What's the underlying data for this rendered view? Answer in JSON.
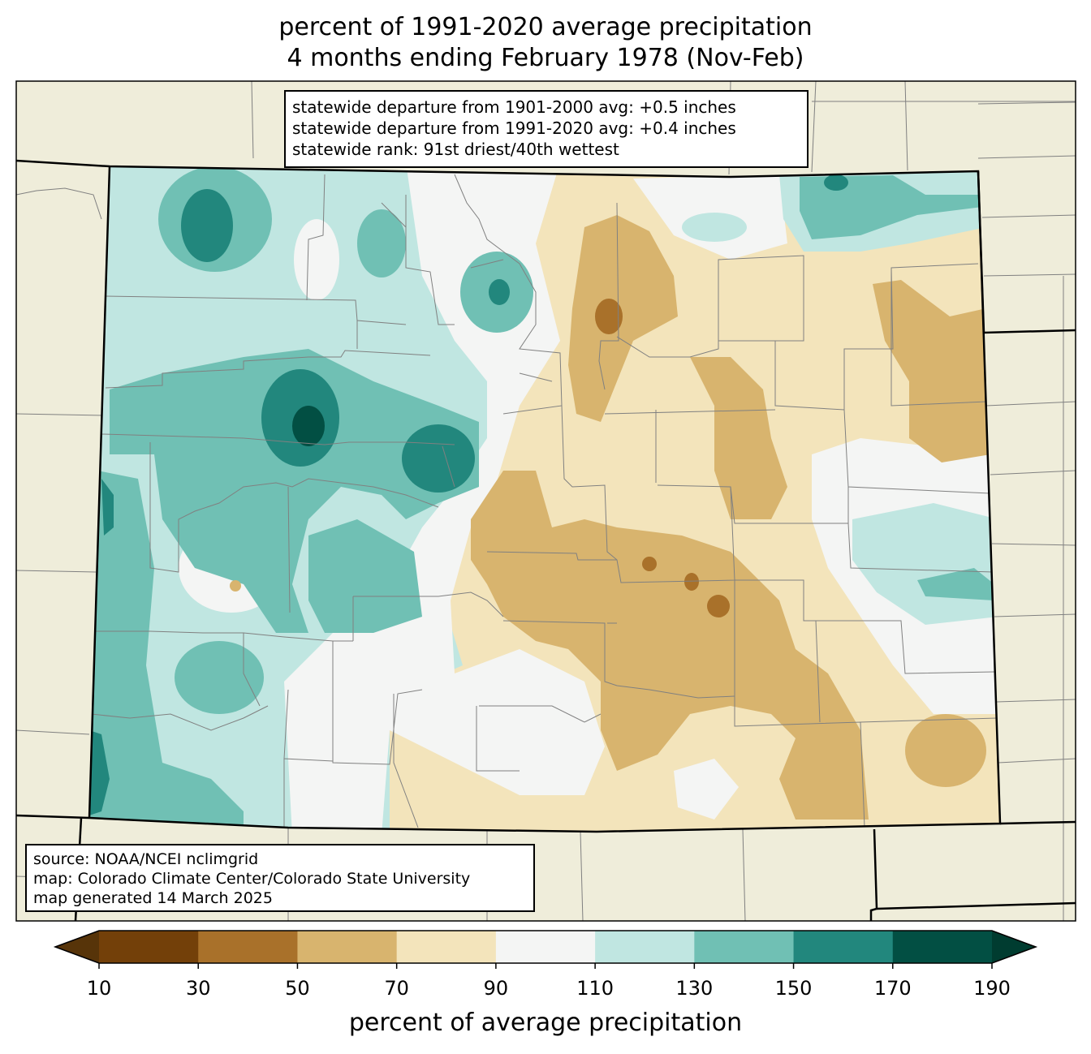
{
  "title": {
    "line1": "percent of 1991-2020 average precipitation",
    "line2": "4 months ending February 1978 (Nov-Feb)"
  },
  "stats": {
    "line1": "statewide departure from 1901-2000 avg: +0.5 inches",
    "line2": "statewide departure from 1991-2020 avg: +0.4 inches",
    "line3": "statewide rank: 91st driest/40th wettest"
  },
  "source": {
    "line1": "source: NOAA/NCEI nclimgrid",
    "line2": "map: Colorado Climate Center/Colorado State University",
    "line3": "map generated 14 March 2025"
  },
  "colorbar": {
    "label": "percent of average precipitation",
    "ticks": [
      "10",
      "30",
      "50",
      "70",
      "90",
      "110",
      "130",
      "150",
      "170",
      "190"
    ],
    "colors": [
      "#734009",
      "#a9712a",
      "#d8b46e",
      "#f3e4bb",
      "#f4f5f4",
      "#c0e6e1",
      "#70c0b4",
      "#22877d",
      "#024f43"
    ],
    "under_color": "#573409",
    "over_color": "#003c30"
  },
  "colors": {
    "background_land": "#efedda",
    "state_border": "#000000",
    "county_line": "#808080"
  }
}
